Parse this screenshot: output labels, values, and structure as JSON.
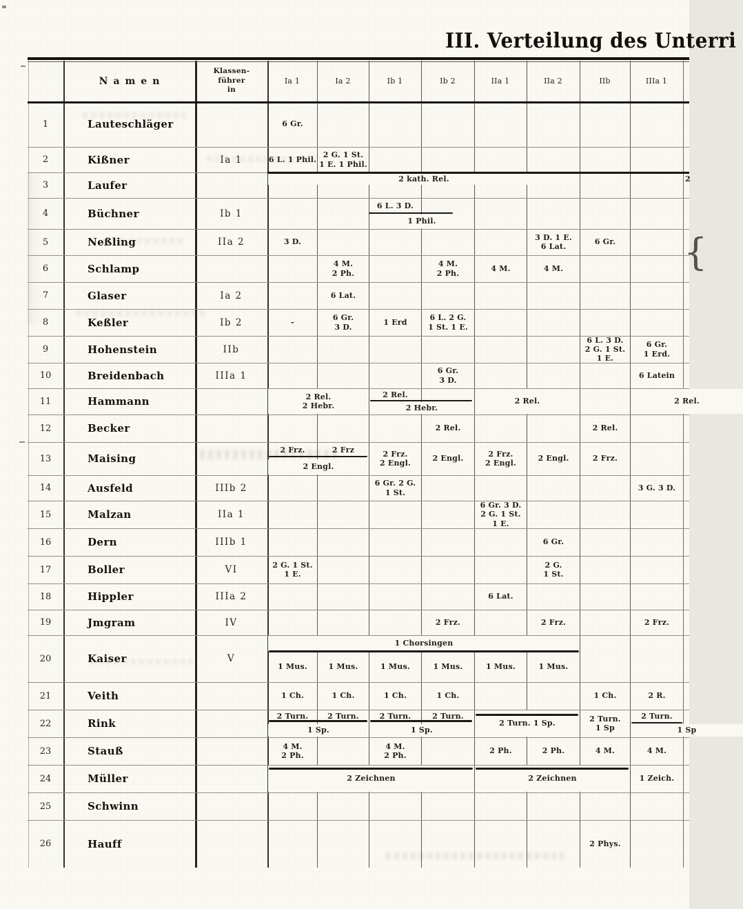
{
  "title": "III. Verteilung des Unterri",
  "colors": {
    "paper": "#faf8f2",
    "ink": "#1c1916"
  },
  "header": {
    "namen": "Namen",
    "klassenfuehrer": [
      "Klassen-",
      "führer",
      "in"
    ],
    "classes": [
      "Ia 1",
      "Ia 2",
      "Ib 1",
      "Ib 2",
      "IIa 1",
      "IIa 2",
      "IIb",
      "IIIa 1"
    ]
  },
  "rows": [
    {
      "num": "1",
      "name": "Lauteschläger",
      "leader": "",
      "cells": [
        {
          "c": "Ia1",
          "t": [
            "6 Gr."
          ]
        }
      ]
    },
    {
      "num": "2",
      "name": "Kißner",
      "leader": "Ia 1",
      "cells": [
        {
          "c": "Ia1",
          "t": [
            "6 L. 1 Phil."
          ]
        },
        {
          "c": "Ia2",
          "t": [
            "2 G. 1 St.",
            "1 E. 1 Phil."
          ]
        }
      ]
    },
    {
      "num": "3",
      "name": "Laufer",
      "leader": "",
      "cells": [
        {
          "c": "Ia1",
          "s": 6,
          "p": "t",
          "t": [
            "2 kath. Rel."
          ]
        },
        {
          "c": "cut",
          "p": "t",
          "t": [
            "2"
          ]
        }
      ]
    },
    {
      "num": "4",
      "name": "Büchner",
      "leader": "Ib 1",
      "cells": [
        {
          "c": "Ib1",
          "p": "t",
          "t": [
            "6 L. 3 D."
          ]
        },
        {
          "c": "Ib1",
          "s": 2,
          "p": "b",
          "t": [
            "1 Phil."
          ]
        }
      ]
    },
    {
      "num": "5",
      "name": "Neßling",
      "leader": "IIa 2",
      "cells": [
        {
          "c": "Ia1",
          "t": [
            "3 D."
          ]
        },
        {
          "c": "IIa2",
          "t": [
            "3 D. 1 E.",
            "6 Lat."
          ]
        },
        {
          "c": "IIb",
          "t": [
            "6 Gr."
          ]
        },
        {
          "c": "cut",
          "cls": "brace",
          "t": [
            "{"
          ]
        }
      ]
    },
    {
      "num": "6",
      "name": "Schlamp",
      "leader": "",
      "cells": [
        {
          "c": "Ia2",
          "t": [
            "4 M.",
            "2 Ph."
          ]
        },
        {
          "c": "Ib2",
          "t": [
            "4 M.",
            "2 Ph."
          ]
        },
        {
          "c": "IIa1",
          "t": [
            "4 M."
          ]
        },
        {
          "c": "IIa2",
          "t": [
            "4 M."
          ]
        }
      ]
    },
    {
      "num": "7",
      "name": "Glaser",
      "leader": "Ia 2",
      "cells": [
        {
          "c": "Ia2",
          "t": [
            "6 Lat."
          ]
        }
      ]
    },
    {
      "num": "8",
      "name": "Keßler",
      "leader": "Ib 2",
      "cells": [
        {
          "c": "Ia1",
          "t": [
            "-"
          ]
        },
        {
          "c": "Ia2",
          "t": [
            "6 Gr.",
            "3 D."
          ]
        },
        {
          "c": "Ib1",
          "t": [
            "1 Erd"
          ]
        },
        {
          "c": "Ib2",
          "t": [
            "6 L. 2 G.",
            "1 St. 1 E."
          ]
        }
      ]
    },
    {
      "num": "9",
      "name": "Hohenstein",
      "leader": "IIb",
      "cells": [
        {
          "c": "IIb",
          "t": [
            "6 L. 3 D.",
            "2 G. 1 St.",
            "1 E."
          ]
        },
        {
          "c": "IIIa1",
          "t": [
            "6 Gr.",
            "1 Erd."
          ]
        }
      ]
    },
    {
      "num": "10",
      "name": "Breidenbach",
      "leader": "IIIa 1",
      "cells": [
        {
          "c": "Ib2",
          "t": [
            "6 Gr.",
            "3 D."
          ]
        },
        {
          "c": "IIIa1",
          "t": [
            "6 Latein"
          ]
        }
      ]
    },
    {
      "num": "11",
      "name": "Hammann",
      "leader": "",
      "cells": [
        {
          "c": "Ia1",
          "s": 2,
          "t": [
            "2 Rel.",
            "2 Hebr."
          ]
        },
        {
          "c": "Ib1",
          "p": "t",
          "t": [
            "2 Rel."
          ]
        },
        {
          "c": "Ib1",
          "s": 2,
          "p": "b",
          "t": [
            "2 Hebr."
          ]
        },
        {
          "c": "IIa1",
          "s": 2,
          "t": [
            "2 Rel."
          ]
        },
        {
          "c": "IIIa1",
          "s": 2,
          "t": [
            "2 Rel."
          ]
        }
      ]
    },
    {
      "num": "12",
      "name": "Becker",
      "leader": "",
      "cells": [
        {
          "c": "Ib2",
          "t": [
            "2 Rel."
          ]
        },
        {
          "c": "IIb",
          "t": [
            "2 Rel."
          ]
        }
      ]
    },
    {
      "num": "13",
      "name": "Maising",
      "leader": "",
      "cells": [
        {
          "c": "Ia1",
          "p": "t",
          "t": [
            "2 Frz."
          ]
        },
        {
          "c": "Ia2",
          "p": "t",
          "t": [
            "2 Frz"
          ]
        },
        {
          "c": "Ia1",
          "s": 2,
          "p": "b",
          "t": [
            "2 Engl."
          ]
        },
        {
          "c": "Ib1",
          "t": [
            "2 Frz.",
            "2 Engl."
          ]
        },
        {
          "c": "Ib2",
          "t": [
            "2 Engl."
          ]
        },
        {
          "c": "IIa1",
          "t": [
            "2 Frz.",
            "2 Engl."
          ]
        },
        {
          "c": "IIa2",
          "t": [
            "2 Engl."
          ]
        },
        {
          "c": "IIb",
          "t": [
            "2 Frz."
          ]
        }
      ]
    },
    {
      "num": "14",
      "name": "Ausfeld",
      "leader": "IIIb 2",
      "cells": [
        {
          "c": "Ib1",
          "t": [
            "6 Gr. 2 G.",
            "1 St."
          ]
        },
        {
          "c": "IIIa1",
          "t": [
            "3 G. 3 D."
          ]
        }
      ]
    },
    {
      "num": "15",
      "name": "Malzan",
      "leader": "IIa 1",
      "cells": [
        {
          "c": "IIa1",
          "t": [
            "6 Gr. 3 D.",
            "2 G. 1 St.",
            "1 E."
          ]
        }
      ]
    },
    {
      "num": "16",
      "name": "Dern",
      "leader": "IIIb 1",
      "cells": [
        {
          "c": "IIa2",
          "t": [
            "6 Gr."
          ]
        }
      ]
    },
    {
      "num": "17",
      "name": "Boller",
      "leader": "VI",
      "cells": [
        {
          "c": "Ia1",
          "t": [
            "2 G. 1 St.",
            "1 E."
          ]
        },
        {
          "c": "IIa2",
          "t": [
            "2 G.",
            "1 St."
          ]
        }
      ]
    },
    {
      "num": "18",
      "name": "Hippler",
      "leader": "IIIa 2",
      "cells": [
        {
          "c": "IIa1",
          "t": [
            "6 Lat."
          ]
        }
      ]
    },
    {
      "num": "19",
      "name": "Jmgram",
      "leader": "IV",
      "cells": [
        {
          "c": "Ib2",
          "t": [
            "2 Frz."
          ]
        },
        {
          "c": "IIa2",
          "t": [
            "2 Frz."
          ]
        },
        {
          "c": "IIIa1",
          "t": [
            "2 Frz."
          ]
        }
      ]
    },
    {
      "num": "20",
      "name": "Kaiser",
      "leader": "V",
      "cells": [
        {
          "c": "Ia1",
          "s": 6,
          "p": "t",
          "t": [
            "1 Chorsingen"
          ]
        },
        {
          "c": "Ia1",
          "p": "b",
          "t": [
            "1 Mus."
          ]
        },
        {
          "c": "Ia2",
          "p": "b",
          "t": [
            "1 Mus."
          ]
        },
        {
          "c": "Ib1",
          "p": "b",
          "t": [
            "1 Mus."
          ]
        },
        {
          "c": "Ib2",
          "p": "b",
          "t": [
            "1 Mus."
          ]
        },
        {
          "c": "IIa1",
          "p": "b",
          "t": [
            "1 Mus."
          ]
        },
        {
          "c": "IIa2",
          "p": "b",
          "t": [
            "1 Mus."
          ]
        }
      ]
    },
    {
      "num": "21",
      "name": "Veith",
      "leader": "",
      "cells": [
        {
          "c": "Ia1",
          "t": [
            "1 Ch."
          ]
        },
        {
          "c": "Ia2",
          "t": [
            "1 Ch."
          ]
        },
        {
          "c": "Ib1",
          "t": [
            "1 Ch."
          ]
        },
        {
          "c": "Ib2",
          "t": [
            "1 Ch."
          ]
        },
        {
          "c": "IIb",
          "t": [
            "1 Ch."
          ]
        },
        {
          "c": "IIIa1",
          "t": [
            "2 R."
          ]
        }
      ]
    },
    {
      "num": "22",
      "name": "Rink",
      "leader": "",
      "cells": [
        {
          "c": "Ia1",
          "p": "t",
          "t": [
            "2 Turn."
          ]
        },
        {
          "c": "Ia2",
          "p": "t",
          "t": [
            "2 Turn."
          ]
        },
        {
          "c": "Ia1",
          "s": 2,
          "p": "b",
          "t": [
            "1 Sp."
          ]
        },
        {
          "c": "Ib1",
          "p": "t",
          "t": [
            "2 Turn."
          ]
        },
        {
          "c": "Ib2",
          "p": "t",
          "t": [
            "2 Turn."
          ]
        },
        {
          "c": "Ib1",
          "s": 2,
          "p": "b",
          "t": [
            "1 Sp."
          ]
        },
        {
          "c": "IIa1",
          "s": 2,
          "t": [
            "2 Turn. 1 Sp."
          ]
        },
        {
          "c": "IIb",
          "t": [
            "2 Turn.",
            "1 Sp"
          ]
        },
        {
          "c": "IIIa1",
          "p": "t",
          "t": [
            "2 Turn."
          ]
        },
        {
          "c": "IIIa1",
          "s": 2,
          "p": "b",
          "t": [
            "1 Sp"
          ]
        }
      ]
    },
    {
      "num": "23",
      "name": "Stauß",
      "leader": "",
      "cells": [
        {
          "c": "Ia1",
          "t": [
            "4 M.",
            "2 Ph."
          ]
        },
        {
          "c": "Ib1",
          "t": [
            "4 M.",
            "2 Ph."
          ]
        },
        {
          "c": "IIa1",
          "t": [
            "2 Ph."
          ]
        },
        {
          "c": "IIa2",
          "t": [
            "2 Ph."
          ]
        },
        {
          "c": "IIb",
          "t": [
            "4 M."
          ]
        },
        {
          "c": "IIIa1",
          "t": [
            "4 M."
          ]
        }
      ]
    },
    {
      "num": "24",
      "name": "Müller",
      "leader": "",
      "cells": [
        {
          "c": "Ia1",
          "s": 4,
          "t": [
            "2 Zeichnen"
          ]
        },
        {
          "c": "IIa1",
          "s": 3,
          "t": [
            "2 Zeichnen"
          ]
        },
        {
          "c": "IIIa1",
          "t": [
            "1 Zeich."
          ]
        }
      ]
    },
    {
      "num": "25",
      "name": "Schwinn",
      "leader": "",
      "cells": []
    },
    {
      "num": "26",
      "name": "Hauff",
      "leader": "",
      "cells": [
        {
          "c": "IIb",
          "t": [
            "2 Phys."
          ]
        }
      ]
    }
  ]
}
